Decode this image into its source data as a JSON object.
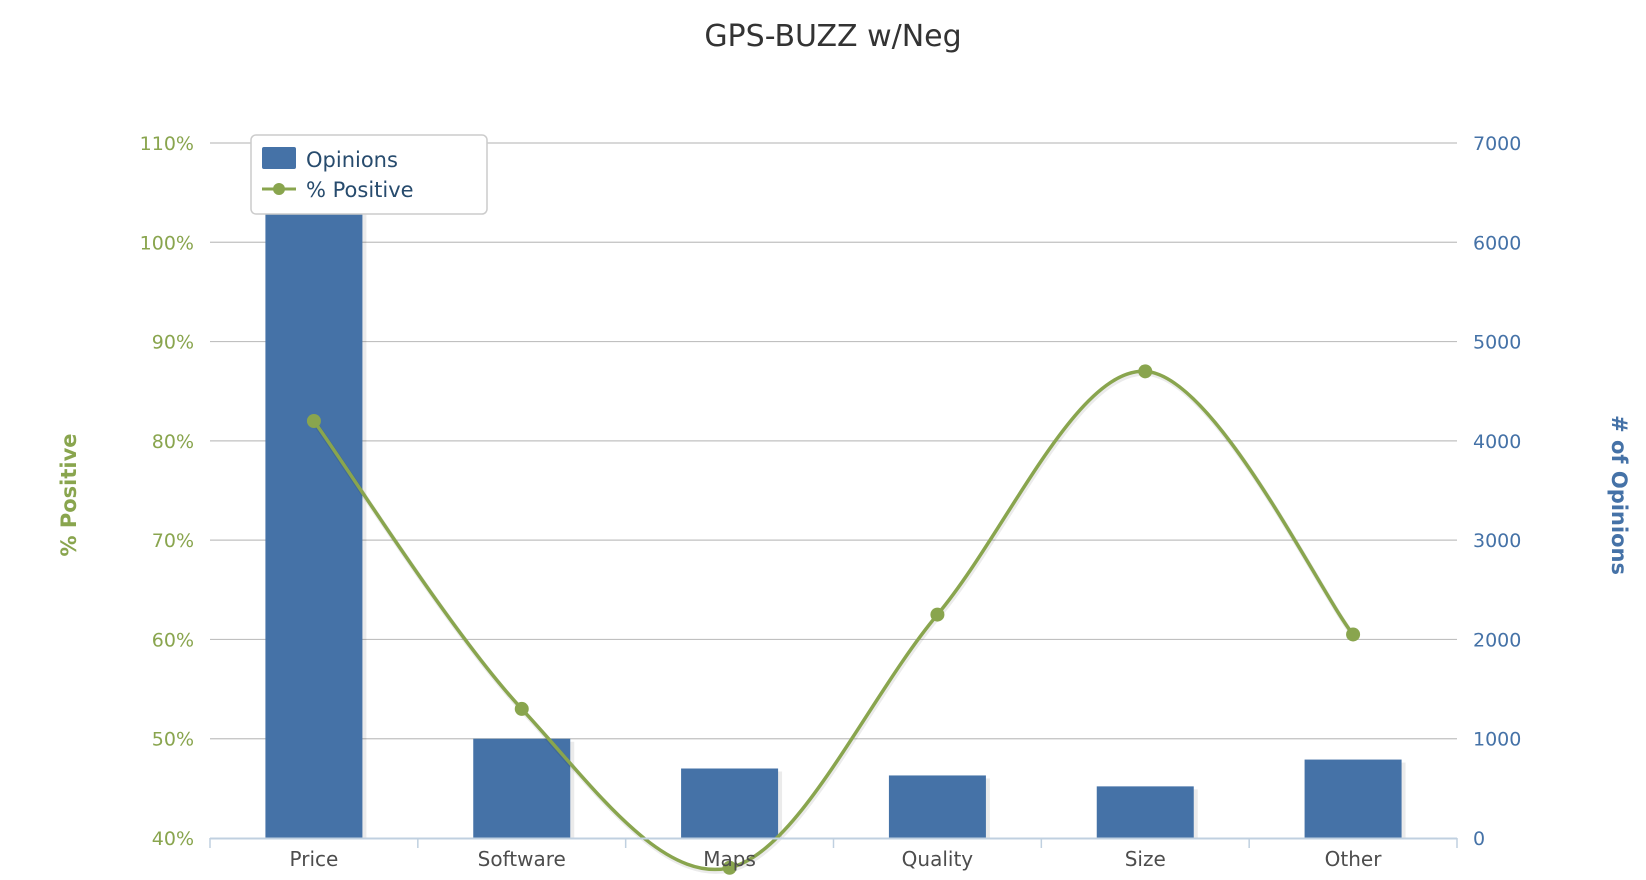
{
  "chart_data": {
    "type": "bar+line",
    "title": "GPS-BUZZ w/Neg",
    "categories": [
      "Price",
      "Software",
      "Maps",
      "Quality",
      "Size",
      "Other"
    ],
    "series": [
      {
        "name": "Opinions",
        "type": "bar",
        "axis": "right",
        "color": "#4572a7",
        "values": [
          6500,
          1000,
          700,
          630,
          520,
          790
        ]
      },
      {
        "name": "% Positive",
        "type": "spline",
        "axis": "left",
        "color": "#89a54e",
        "values": [
          82,
          53,
          37,
          62.5,
          87,
          60.5
        ]
      }
    ],
    "y_left": {
      "label": "% Positive",
      "range": [
        40,
        110
      ],
      "ticks": [
        40,
        50,
        60,
        70,
        80,
        90,
        100,
        110
      ],
      "tick_labels": [
        "40%",
        "50%",
        "60%",
        "70%",
        "80%",
        "90%",
        "100%",
        "110%"
      ],
      "color": "#89a54e"
    },
    "y_right": {
      "label": "# of Opinions",
      "range": [
        0,
        7000
      ],
      "ticks": [
        0,
        1000,
        2000,
        3000,
        4000,
        5000,
        6000,
        7000
      ],
      "tick_labels": [
        "0",
        "1000",
        "2000",
        "3000",
        "4000",
        "5000",
        "6000",
        "7000"
      ],
      "color": "#4572a7"
    },
    "grid": true,
    "legend_position": "top-left"
  }
}
